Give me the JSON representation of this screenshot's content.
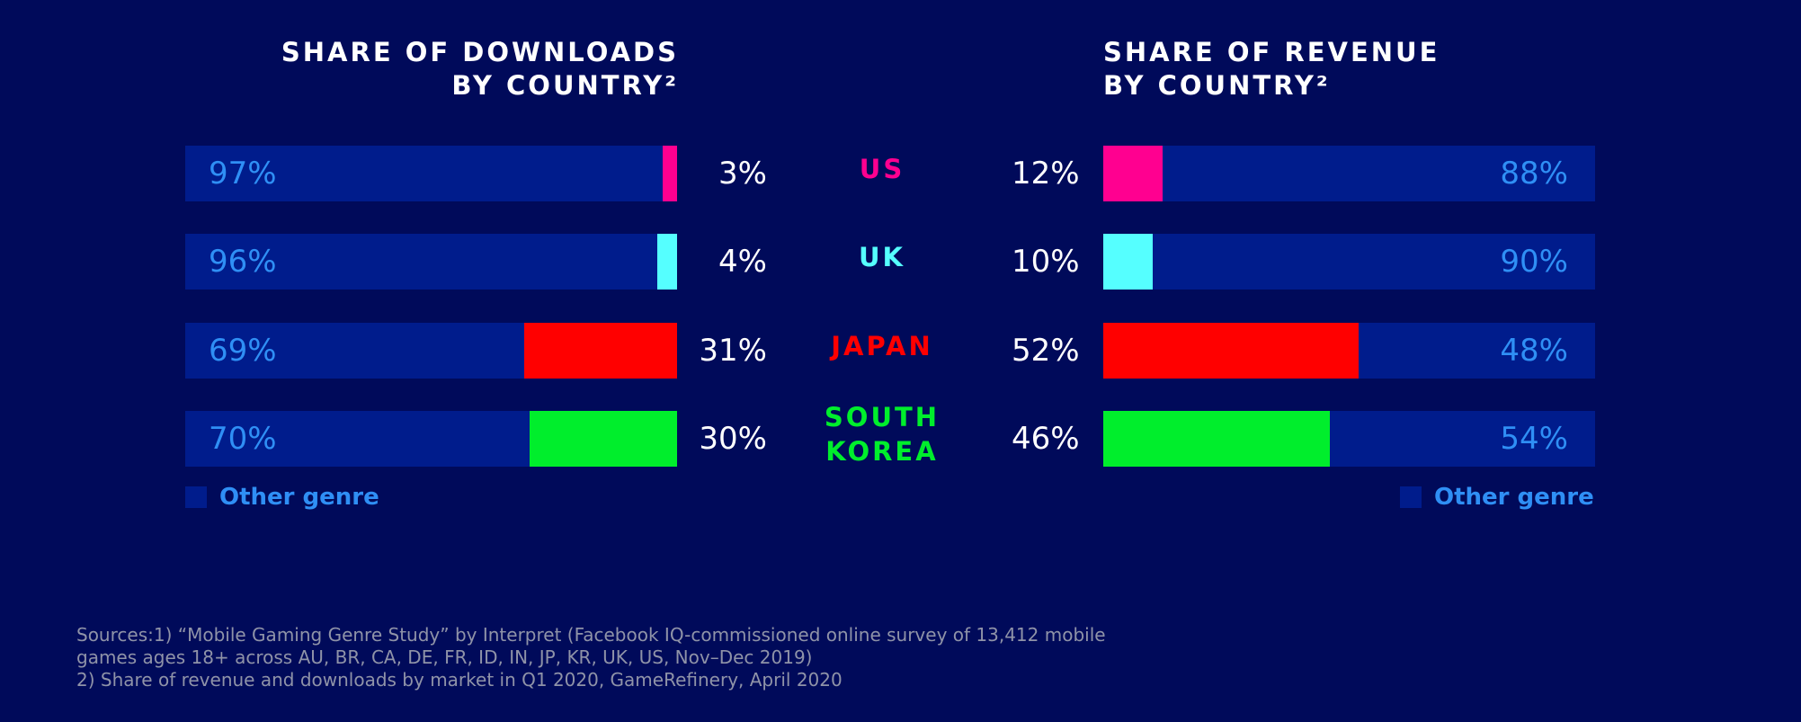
{
  "chart_data": [
    {
      "type": "bar",
      "stacked": true,
      "orientation": "horizontal",
      "title": "SHARE OF DOWNLOADS BY COUNTRY²",
      "title_lines": [
        "SHARE OF DOWNLOADS",
        "BY COUNTRY²"
      ],
      "categories": [
        "US",
        "UK",
        "JAPAN",
        "SOUTH KOREA"
      ],
      "series": [
        {
          "name": "Other genre",
          "values": [
            97,
            96,
            69,
            70
          ],
          "labels": [
            "97%",
            "96%",
            "69%",
            "70%"
          ],
          "color": "#001c8c"
        },
        {
          "values": [
            3,
            4,
            31,
            30
          ],
          "labels": [
            "3%",
            "4%",
            "31%",
            "30%"
          ],
          "colors": [
            "#ff0090",
            "#55ffff",
            "#ff0000",
            "#00ee2c"
          ]
        }
      ],
      "legend": "bottom-left"
    },
    {
      "type": "bar",
      "stacked": true,
      "orientation": "horizontal",
      "title": "SHARE OF REVENUE BY COUNTRY²",
      "title_lines": [
        "SHARE OF REVENUE",
        "BY COUNTRY²"
      ],
      "categories": [
        "US",
        "UK",
        "JAPAN",
        "SOUTH KOREA"
      ],
      "series": [
        {
          "values": [
            12,
            10,
            52,
            46
          ],
          "labels": [
            "12%",
            "10%",
            "52%",
            "46%"
          ],
          "colors": [
            "#ff0090",
            "#55ffff",
            "#ff0000",
            "#00ee2c"
          ]
        },
        {
          "name": "Other genre",
          "values": [
            88,
            90,
            48,
            54
          ],
          "labels": [
            "88%",
            "90%",
            "48%",
            "54%"
          ],
          "color": "#001c8c"
        }
      ],
      "legend": "bottom-right"
    }
  ],
  "countries": [
    {
      "lines": [
        "US"
      ],
      "color": "#ff0090"
    },
    {
      "lines": [
        "UK"
      ],
      "color": "#55ffff"
    },
    {
      "lines": [
        "JAPAN"
      ],
      "color": "#ff0000"
    },
    {
      "lines": [
        "SOUTH",
        "KOREA"
      ],
      "color": "#00ee2c"
    }
  ],
  "legend_label": "Other genre",
  "colors": {
    "background": "#000a5a",
    "other_bar": "#001c8c",
    "other_label": "#2f8ff5"
  },
  "sources": [
    "Sources:1) “Mobile Gaming Genre Study” by Interpret (Facebook IQ-commissioned online survey of 13,412 mobile",
    "games ages 18+ across AU, BR, CA, DE, FR, ID, IN, JP, KR, UK, US, Nov–Dec 2019)",
    "2) Share of revenue and downloads by market in Q1 2020, GameRefinery, April 2020"
  ]
}
